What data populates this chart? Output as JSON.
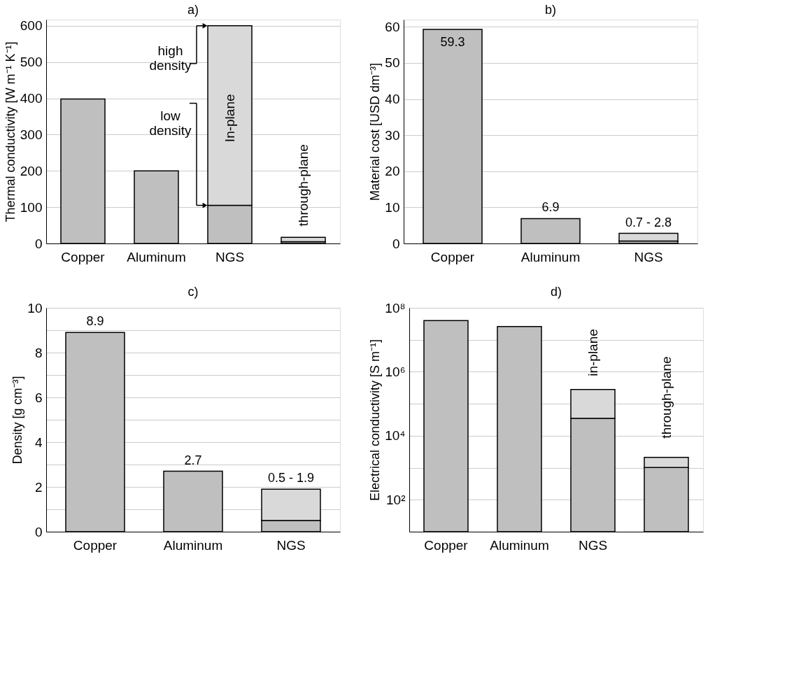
{
  "chart_data": [
    {
      "type": "bar",
      "title": "a)",
      "ylabel": "Thermal conductivity [W m⁻¹ K⁻¹]",
      "categories": [
        "Copper",
        "Aluminum",
        "NGS",
        null
      ],
      "stacked": true,
      "series": [
        {
          "color": "#bfbfbf",
          "values": [
            398,
            200,
            105,
            5
          ]
        },
        {
          "color": "#d9d9d9",
          "values": [
            null,
            null,
            495,
            12
          ]
        }
      ],
      "ylim": [
        0,
        617
      ],
      "yticks": [
        0,
        100,
        200,
        300,
        400,
        500,
        600
      ],
      "grid": "y",
      "legend": false,
      "annotations": [
        "high\ndensity",
        "low\ndensity",
        "In-plane",
        "through-plane"
      ]
    },
    {
      "type": "bar",
      "title": "b)",
      "ylabel": "Material cost [USD dm⁻³]",
      "categories": [
        "Copper",
        "Aluminum",
        "NGS"
      ],
      "stacked": true,
      "series": [
        {
          "color": "#b8b8b8",
          "values": [
            59.3,
            6.9,
            0.7
          ],
          "value_labels": [
            "59.3",
            "6.9",
            "0.7 - 2.8"
          ]
        },
        {
          "color": "#dedede",
          "values": [
            null,
            null,
            2.1
          ]
        }
      ],
      "ylim": [
        0,
        62
      ],
      "yticks": [
        0,
        10,
        20,
        30,
        40,
        50,
        60
      ],
      "grid": "y",
      "legend": false
    },
    {
      "type": "bar",
      "title": "c)",
      "ylabel": "Density [g cm⁻³]",
      "categories": [
        "Copper",
        "Aluminum",
        "NGS"
      ],
      "stacked": true,
      "series": [
        {
          "color": "#b8b8b8",
          "values": [
            8.9,
            2.7,
            0.5
          ],
          "value_labels": [
            "8.9",
            "2.7",
            "0.5 - 1.9"
          ]
        },
        {
          "color": "#dedede",
          "values": [
            null,
            null,
            1.4
          ]
        }
      ],
      "ylim": [
        0,
        10
      ],
      "yticks": [
        0,
        {
          "value": 1,
          "label": null
        },
        2,
        {
          "value": 3,
          "label": null
        },
        4,
        {
          "value": 5,
          "label": null
        },
        6,
        {
          "value": 7,
          "label": null
        },
        8,
        {
          "value": 9,
          "label": null
        },
        10
      ],
      "grid": "y",
      "legend": false
    },
    {
      "type": "bar",
      "title": "d)",
      "ylabel": "Electrical conductivity [S m⁻¹]",
      "categories": [
        "Copper",
        "Aluminum",
        "NGS",
        null
      ],
      "stacked": true,
      "log": true,
      "series": [
        {
          "color": "#bfbfbf",
          "values": [
            40000000,
            26000000,
            35000,
            1000
          ]
        },
        {
          "color": "#d6d6d6",
          "values": [
            null,
            null,
            245000,
            1100
          ]
        }
      ],
      "ylim": [
        10,
        100000000
      ],
      "yticks": [
        {
          "value": 10,
          "label": null
        },
        {
          "value": 100,
          "label": "10²"
        },
        {
          "value": 1000,
          "label": null
        },
        {
          "value": 10000,
          "label": "10⁴"
        },
        {
          "value": 100000,
          "label": null
        },
        {
          "value": 1000000,
          "label": "10⁶"
        },
        {
          "value": 10000000,
          "label": null
        },
        {
          "value": 100000000,
          "label": "10⁸"
        }
      ],
      "grid": "y",
      "legend": false,
      "annotations": [
        "in-plane",
        "through-plane"
      ]
    }
  ]
}
